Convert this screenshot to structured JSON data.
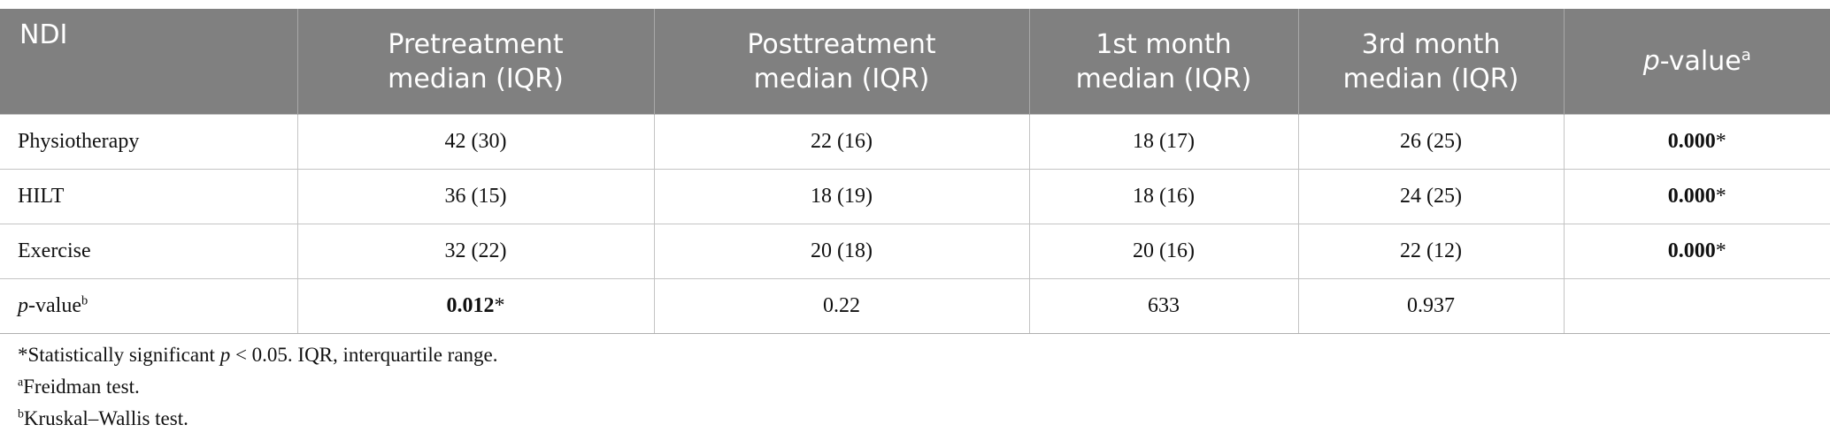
{
  "table": {
    "header": [
      [
        {
          "line": "NDI"
        }
      ],
      [
        {
          "line": "Pretreatment"
        },
        {
          "line": "median (IQR)"
        }
      ],
      [
        {
          "line": "Posttreatment"
        },
        {
          "line": "median (IQR)"
        }
      ],
      [
        {
          "line": "1st month"
        },
        {
          "line": "median (IQR)"
        }
      ],
      [
        {
          "line": "3rd month"
        },
        {
          "line": "median (IQR)"
        }
      ],
      [
        {
          "italic": "p"
        },
        {
          "text": "-value"
        },
        {
          "sup": "a"
        }
      ]
    ],
    "rows": [
      [
        "Physiotherapy",
        "42 (30)",
        "22 (16)",
        "18 (17)",
        "26 (25)",
        [
          {
            "bold": "0.000"
          },
          {
            "text": "*"
          }
        ]
      ],
      [
        "HILT",
        "36 (15)",
        "18 (19)",
        "18 (16)",
        "24 (25)",
        [
          {
            "bold": "0.000"
          },
          {
            "text": "*"
          }
        ]
      ],
      [
        "Exercise",
        "32 (22)",
        "20 (18)",
        "20 (16)",
        "22 (12)",
        [
          {
            "bold": "0.000"
          },
          {
            "text": "*"
          }
        ]
      ],
      [
        [
          {
            "italic": "p"
          },
          {
            "text": "-value"
          },
          {
            "sup": "b"
          }
        ],
        [
          {
            "bold": "0.012"
          },
          {
            "text": "*"
          }
        ],
        "0.22",
        "633",
        "0.937"
      ]
    ]
  },
  "footnotes": [
    [
      {
        "text": "*Statistically significant "
      },
      {
        "italic": "p"
      },
      {
        "text": " < 0.05. IQR, interquartile range."
      }
    ],
    [
      {
        "sup": "a"
      },
      {
        "text": "Freidman test."
      }
    ],
    [
      {
        "sup": "b"
      },
      {
        "text": "Kruskal–Wallis test."
      }
    ]
  ]
}
